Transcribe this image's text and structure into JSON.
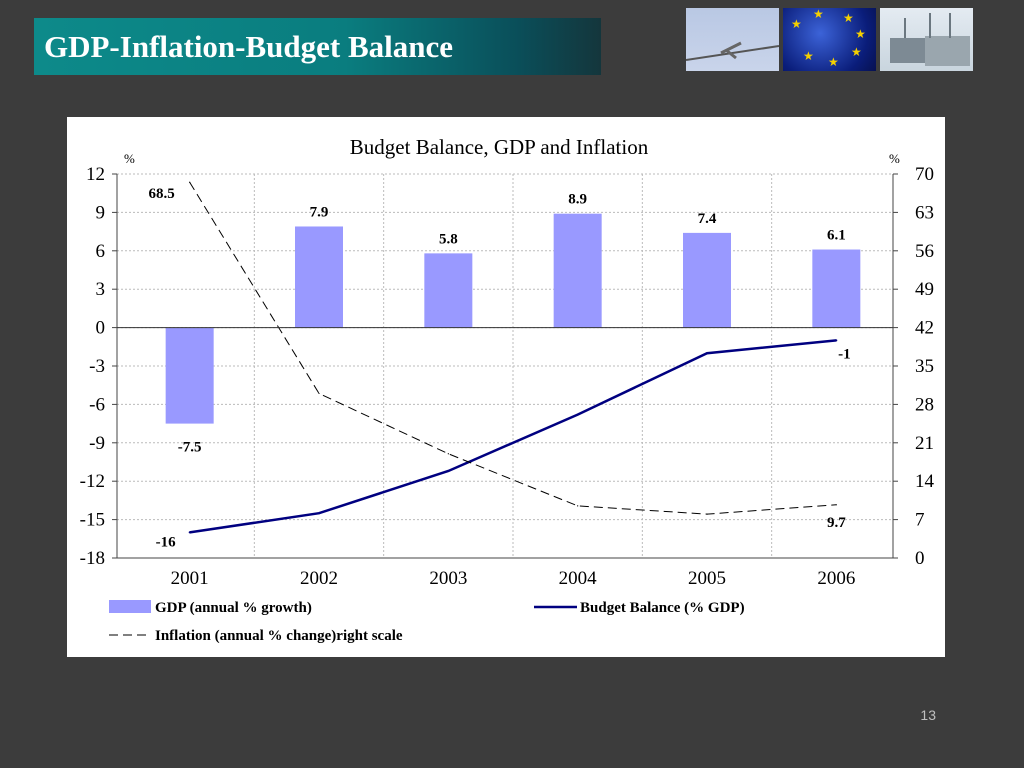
{
  "slide": {
    "title": "GDP-Inflation-Budget Balance",
    "page_number": "13"
  },
  "images": [
    "airplane-photo",
    "eu-flag-photo",
    "cargo-ships-photo"
  ],
  "colors": {
    "bar": "#9999ff",
    "budget_line": "#000080",
    "inflation_line": "#000000",
    "title_bg": "#0a8384"
  },
  "chart_data": {
    "type": "bar",
    "title": "Budget Balance, GDP and Inflation",
    "left_axis_unit": "%",
    "right_axis_unit": "%",
    "categories": [
      "2001",
      "2002",
      "2003",
      "2004",
      "2005",
      "2006"
    ],
    "left_axis": {
      "ylim": [
        -18,
        12
      ],
      "ticks": [
        "12",
        "9",
        "6",
        "3",
        "0",
        "-3",
        "-6",
        "-9",
        "-12",
        "-15",
        "-18"
      ]
    },
    "right_axis": {
      "ylim": [
        0,
        70
      ],
      "ticks": [
        "70",
        "63",
        "56",
        "49",
        "42",
        "35",
        "28",
        "21",
        "14",
        "7",
        "0"
      ]
    },
    "grid": true,
    "legend_placement": "bottom",
    "series": [
      {
        "name": "GDP (annual % growth)",
        "type": "bar",
        "axis": "left",
        "values": [
          -7.5,
          7.9,
          5.8,
          8.9,
          7.4,
          6.1
        ],
        "labels": [
          "-7.5",
          "7.9",
          "5.8",
          "8.9",
          "7.4",
          "6.1"
        ]
      },
      {
        "name": "Budget Balance (% GDP)",
        "type": "line",
        "axis": "left",
        "values": [
          -16,
          -14.5,
          -11.2,
          -6.8,
          -2,
          -1
        ],
        "labels": [
          "-16",
          "",
          "",
          "",
          "",
          "-1"
        ]
      },
      {
        "name": "Inflation (annual % change)right scale",
        "type": "line-dashed",
        "axis": "right",
        "values": [
          68.5,
          30,
          19,
          9.5,
          8,
          9.7
        ],
        "labels": [
          "68.5",
          "",
          "",
          "",
          "",
          "9.7"
        ]
      }
    ]
  }
}
